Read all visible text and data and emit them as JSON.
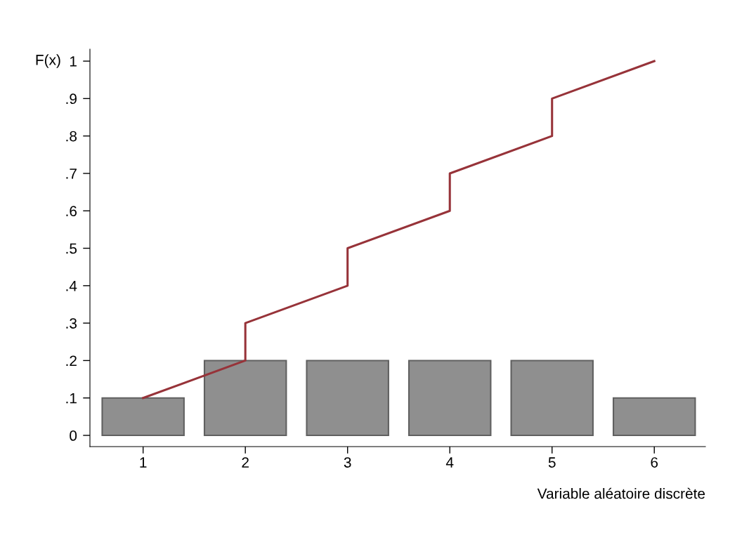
{
  "chart_data": {
    "type": "bar",
    "xlabel": "Variable aléatoire discrète",
    "ylabel": "F(x)",
    "series": [
      {
        "x": [
          1,
          2,
          3,
          4,
          5,
          6
        ],
        "values": [
          0.1,
          0.2,
          0.2,
          0.2,
          0.2,
          0.1
        ],
        "color": "#8f8f8f"
      },
      {
        "type": "line",
        "x": [
          1,
          2,
          2,
          3,
          3,
          4,
          4,
          5,
          5,
          6
        ],
        "values": [
          0.1,
          0.2,
          0.3,
          0.4,
          0.5,
          0.6,
          0.7,
          0.8,
          0.9,
          1.0
        ],
        "color": "#973339"
      }
    ],
    "xlim": [
      0.48,
      6.5
    ],
    "ylim": [
      -0.03,
      1.032
    ],
    "xticks": [
      1,
      2,
      3,
      4,
      5,
      6
    ],
    "yticks": [
      {
        "value": 0,
        "label": "0"
      },
      {
        "value": 0.1,
        "label": ".1"
      },
      {
        "value": 0.2,
        "label": ".2"
      },
      {
        "value": 0.3,
        "label": ".3"
      },
      {
        "value": 0.4,
        "label": ".4"
      },
      {
        "value": 0.5,
        "label": ".5"
      },
      {
        "value": 0.6,
        "label": ".6"
      },
      {
        "value": 0.7,
        "label": ".7"
      },
      {
        "value": 0.8,
        "label": ".8"
      },
      {
        "value": 0.9,
        "label": ".9"
      },
      {
        "value": 1,
        "label": "1"
      }
    ],
    "grid": false,
    "legend": false
  }
}
